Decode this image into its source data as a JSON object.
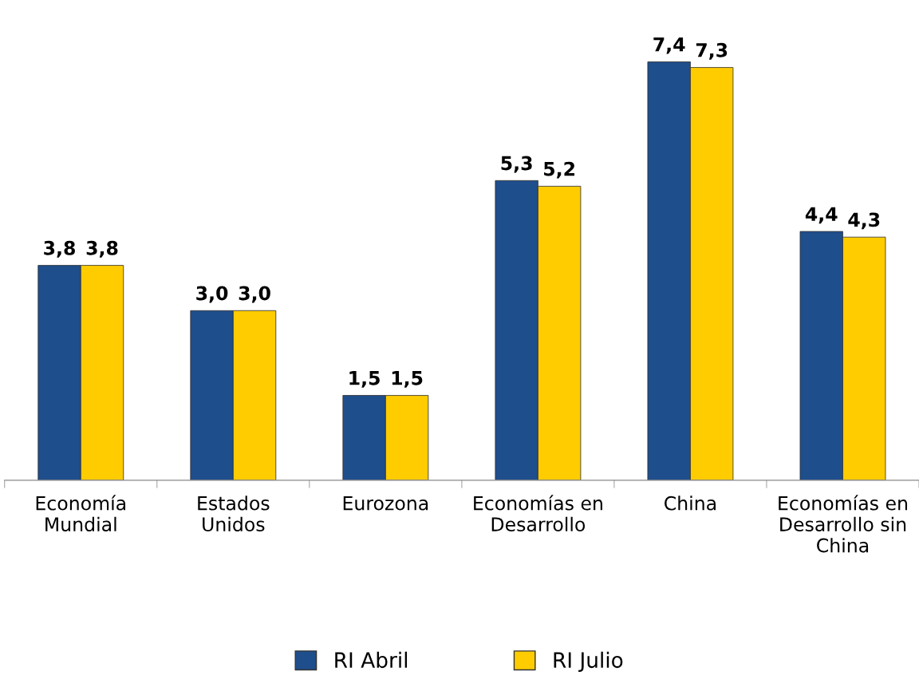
{
  "chart_data": {
    "type": "bar",
    "categories": [
      "Economía\nMundial",
      "Estados\nUnidos",
      "Eurozona",
      "Economías en\nDesarrollo",
      "China",
      "Economías en\nDesarrollo sin\nChina"
    ],
    "series": [
      {
        "name": "RI Abril",
        "color": "#1f4e8c",
        "values": [
          3.8,
          3.0,
          1.5,
          5.3,
          7.4,
          4.4
        ],
        "value_labels": [
          "3,8",
          "3,0",
          "1,5",
          "5,3",
          "7,4",
          "4,4"
        ]
      },
      {
        "name": "RI Julio",
        "color": "#ffcc00",
        "values": [
          3.8,
          3.0,
          1.5,
          5.2,
          7.3,
          4.3
        ],
        "value_labels": [
          "3,8",
          "3,0",
          "1,5",
          "5,2",
          "7,3",
          "4,3"
        ]
      }
    ],
    "legend": "bottom",
    "grid": false
  }
}
